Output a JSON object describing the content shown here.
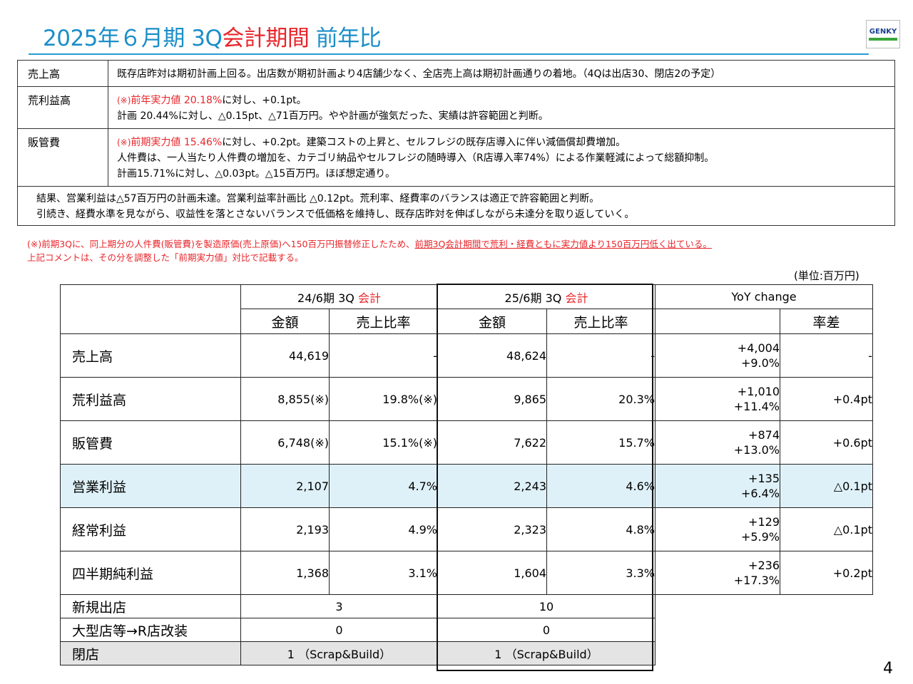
{
  "title": {
    "prefix": "2025年６月期 3Q",
    "red": "会計期間",
    "suffix": " 前年比"
  },
  "logo": "GENKY",
  "summary": [
    {
      "label": "売上高",
      "lines": [
        [
          {
            "t": "既存店昨対は期初計画上回る。出店数が期初計画より4店舗少なく、全店売上高は期初計画通りの着地。（4Qは出店30、閉店2の予定）"
          }
        ]
      ]
    },
    {
      "label": "荒利益高",
      "lines": [
        [
          {
            "t": "(※)",
            "c": "red",
            "s": true
          },
          {
            "t": "前年実力値 20.18%",
            "c": "red"
          },
          {
            "t": "に対し、+0.1pt。"
          }
        ],
        [
          {
            "t": "計画 20.44%に対し、△0.15pt、△71百万円。やや計画が強気だった、実績は許容範囲と判断。"
          }
        ]
      ]
    },
    {
      "label": "販管費",
      "lines": [
        [
          {
            "t": "(※)",
            "c": "red",
            "s": true
          },
          {
            "t": "前期実力値 15.46%",
            "c": "red"
          },
          {
            "t": "に対し、+0.2pt。建築コストの上昇と、セルフレジの既存店導入に伴い減価償却費増加。"
          }
        ],
        [
          {
            "t": "人件費は、一人当たり人件費の増加を、カテゴリ納品やセルフレジの随時導入（R店導入率74%）による作業軽減によって総額抑制。"
          }
        ],
        [
          {
            "t": "計画15.71%に対し、△0.03pt。△15百万円。ほぼ想定通り。"
          }
        ]
      ]
    }
  ],
  "summary_footer": [
    "結果、営業利益は△57百万円の計画未達。営業利益率計画比 △0.12pt。荒利率、経費率のバランスは適正で許容範囲と判断。",
    "引続き、経費水準を見ながら、収益性を落とさないバランスで低価格を維持し、既存店昨対を伸ばしながら未達分を取り返していく。"
  ],
  "note": {
    "line1_a": "(※)前期3Qに、同上期分の人件費(販管費)を製造原価(売上原価)へ150百万円振替修正したため、",
    "line1_b": "前期3Q会計期間で荒利・経費ともに実力値より150百万円低く出ている。",
    "line2": "上記コメントは、その分を調整した「前期実力値」対比で記載する。"
  },
  "unit": "(単位:百万円)",
  "table": {
    "period_prev": {
      "a": "24/6期 3Q ",
      "b": "会計"
    },
    "period_cur": {
      "a": "25/6期 3Q ",
      "b": "会計"
    },
    "yoy_header": "YoY change",
    "col_amount": "金額",
    "col_ratio": "売上比率",
    "col_diff": "率差",
    "rows": [
      {
        "label": "売上高",
        "prev_amt": "44,619",
        "prev_ratio": "-",
        "cur_amt": "48,624",
        "cur_ratio": "-",
        "yoy_amt": "+4,004",
        "yoy_pct": "+9.0%",
        "diff": "-"
      },
      {
        "label": "荒利益高",
        "prev_amt": "8,855(※)",
        "prev_ratio": "19.8%(※)",
        "cur_amt": "9,865",
        "cur_ratio": "20.3%",
        "yoy_amt": "+1,010",
        "yoy_pct": "+11.4%",
        "diff": "+0.4pt"
      },
      {
        "label": "販管費",
        "prev_amt": "6,748(※)",
        "prev_ratio": "15.1%(※)",
        "cur_amt": "7,622",
        "cur_ratio": "15.7%",
        "yoy_amt": "+874",
        "yoy_pct": "+13.0%",
        "diff": "+0.6pt"
      },
      {
        "label": "営業利益",
        "prev_amt": "2,107",
        "prev_ratio": "4.7%",
        "cur_amt": "2,243",
        "cur_ratio": "4.6%",
        "yoy_amt": "+135",
        "yoy_pct": "+6.4%",
        "diff": "△0.1pt"
      },
      {
        "label": "経常利益",
        "prev_amt": "2,193",
        "prev_ratio": "4.9%",
        "cur_amt": "2,323",
        "cur_ratio": "4.8%",
        "yoy_amt": "+129",
        "yoy_pct": "+5.9%",
        "diff": "△0.1pt"
      },
      {
        "label": "四半期純利益",
        "prev_amt": "1,368",
        "prev_ratio": "3.1%",
        "cur_amt": "1,604",
        "cur_ratio": "3.3%",
        "yoy_amt": "+236",
        "yoy_pct": "+17.3%",
        "diff": "+0.2pt"
      }
    ],
    "stores": [
      {
        "label": "新規出店",
        "prev": "3",
        "cur": "10"
      },
      {
        "label": "大型店等→R店改装",
        "prev": "0",
        "cur": "0"
      },
      {
        "label": "閉店",
        "prev": "1 （Scrap&Build）",
        "cur": "1 （Scrap&Build）"
      }
    ]
  },
  "page_number": "4",
  "colors": {
    "title_blue": "#1b8ec8",
    "accent_red": "#e8262b",
    "highlight_row": "#dff1f8",
    "gray_row": "#e4e4e4"
  }
}
